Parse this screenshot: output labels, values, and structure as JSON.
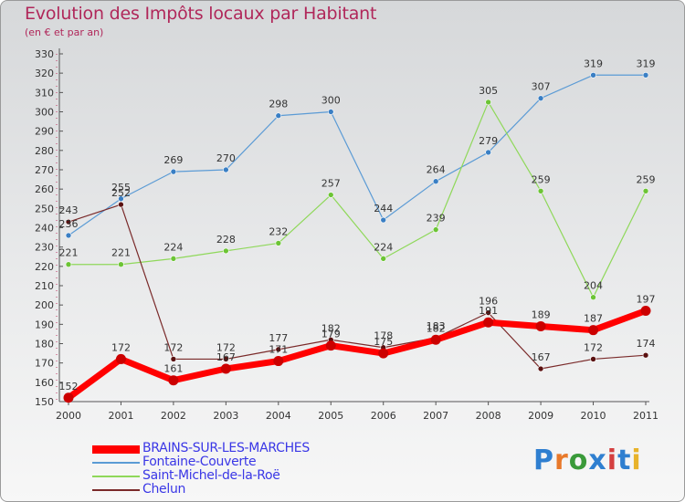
{
  "header": {
    "title": "Evolution des Impôts locaux par Habitant",
    "subtitle": "(en € et par an)"
  },
  "logo": {
    "text": "Proxiti",
    "colors": [
      "#2f7fd0",
      "#e8792a",
      "#3a9a3a",
      "#2f7fd0",
      "#d43f3f",
      "#2f7fd0",
      "#e8b32a"
    ]
  },
  "chart_data": {
    "type": "line",
    "x": [
      "2000",
      "2001",
      "2002",
      "2003",
      "2004",
      "2005",
      "2006",
      "2007",
      "2008",
      "2009",
      "2010",
      "2011"
    ],
    "ylim": [
      150,
      330
    ],
    "ytick_step": 10,
    "grid": false,
    "legend_position": "bottom-left",
    "series": [
      {
        "name": "BRAINS-SUR-LES-MARCHES",
        "color": "#ff0000",
        "marker_color": "#cc0000",
        "thick": true,
        "values": [
          152,
          172,
          161,
          167,
          171,
          179,
          175,
          182,
          191,
          189,
          187,
          197
        ],
        "labels": [
          "152",
          "172",
          "161",
          "167",
          "171",
          "179",
          "175",
          "182",
          "191",
          "189",
          "187",
          "197"
        ]
      },
      {
        "name": "Fontaine-Couverte",
        "color": "#5b9bd5",
        "marker_color": "#3a7fc4",
        "thick": false,
        "values": [
          236,
          255,
          269,
          270,
          298,
          300,
          244,
          264,
          279,
          307,
          319,
          319
        ],
        "labels": [
          "236",
          "255",
          "269",
          "270",
          "298",
          "300",
          "244",
          "264",
          "279",
          "307",
          "319",
          "319"
        ]
      },
      {
        "name": "Saint-Michel-de-la-Roë",
        "color": "#8fd85a",
        "marker_color": "#6cc435",
        "thick": false,
        "values": [
          221,
          221,
          224,
          228,
          232,
          257,
          224,
          239,
          305,
          259,
          204,
          259
        ],
        "labels": [
          "221",
          "221",
          "224",
          "228",
          "232",
          "257",
          "224",
          "239",
          "305",
          "259",
          "204",
          "259"
        ]
      },
      {
        "name": "Chelun",
        "color": "#7a2a2a",
        "marker_color": "#5a1010",
        "thick": false,
        "values": [
          243,
          252,
          172,
          172,
          177,
          182,
          178,
          183,
          196,
          167,
          172,
          174
        ],
        "labels": [
          "243",
          "252",
          "172",
          "172",
          "177",
          "182",
          "178",
          "183",
          "196",
          "167",
          "172",
          "174"
        ]
      }
    ]
  }
}
